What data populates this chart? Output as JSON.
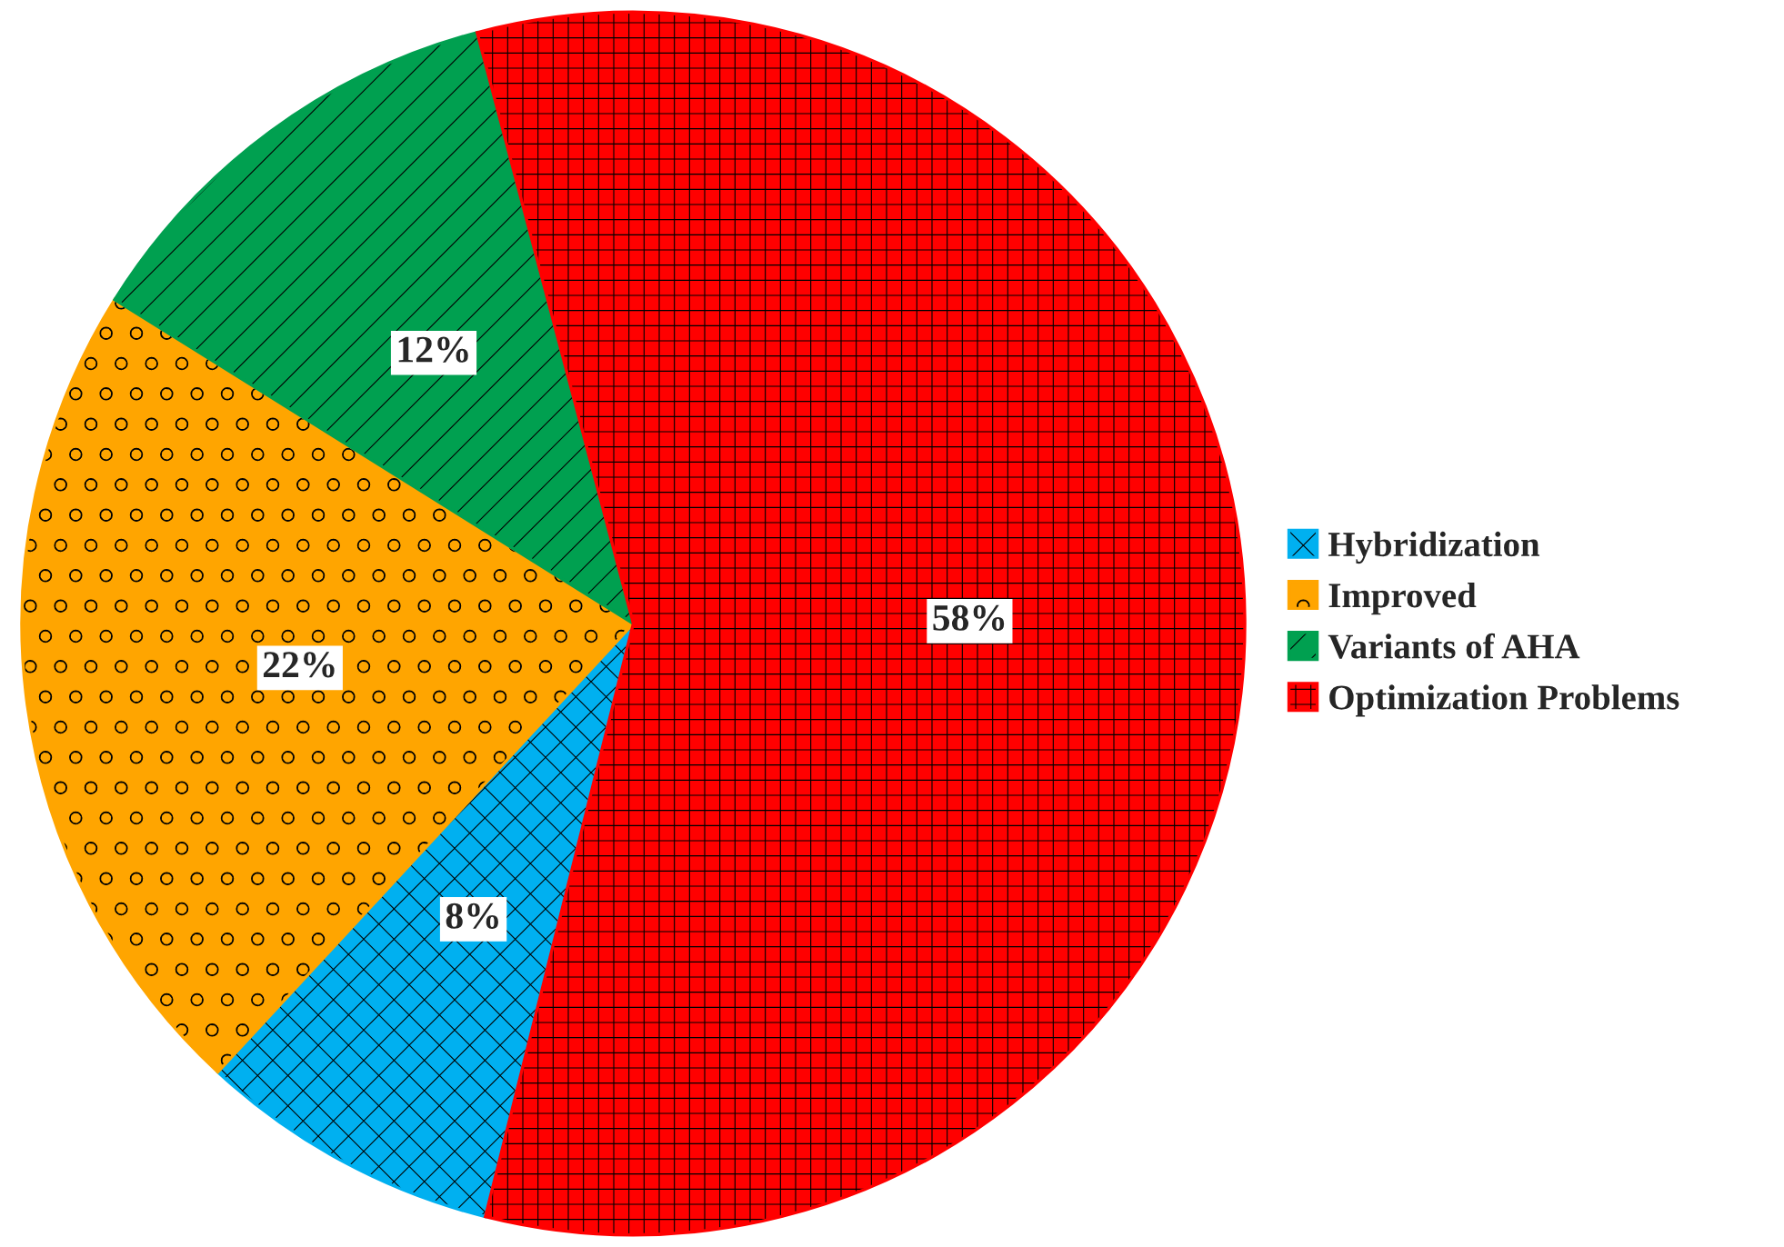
{
  "chart_data": {
    "type": "pie",
    "categories": [
      "Hybridization",
      "Improved",
      "Variants of AHA",
      "Optimization Problems"
    ],
    "values": [
      8,
      22,
      12,
      58
    ],
    "colors": [
      "#00b0f0",
      "#ffa500",
      "#00a050",
      "#ff0000"
    ],
    "value_labels": [
      "8%",
      "22%",
      "12%",
      "58%"
    ],
    "legend": "right"
  }
}
